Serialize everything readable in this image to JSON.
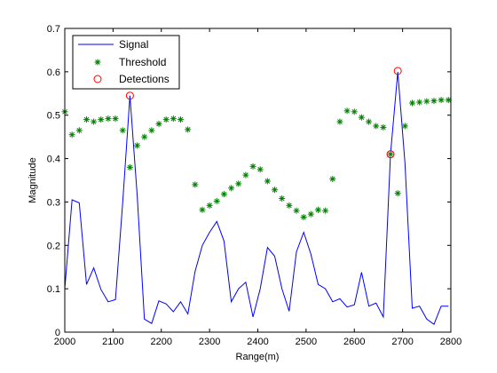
{
  "chart_data": {
    "type": "line",
    "title": "",
    "xlabel": "Range(m)",
    "ylabel": "Magnitude",
    "xlim": [
      2000,
      2800
    ],
    "ylim": [
      0,
      0.7
    ],
    "xticks": [
      2000,
      2100,
      2200,
      2300,
      2400,
      2500,
      2600,
      2700,
      2800
    ],
    "xtick_labels": [
      "2000",
      "2100",
      "2200",
      "2300",
      "2400",
      "2500",
      "2600",
      "2700",
      "2800"
    ],
    "yticks": [
      0,
      0.1,
      0.2,
      0.3,
      0.4,
      0.5,
      0.6,
      0.7
    ],
    "ytick_labels": [
      "0",
      "0.1",
      "0.2",
      "0.3",
      "0.4",
      "0.5",
      "0.6",
      "0.7"
    ],
    "legend_position": "top-left",
    "colors": {
      "signal": "#0000ff",
      "threshold": "#008000",
      "detections": "#ff0000"
    },
    "series": [
      {
        "name": "Signal",
        "style": "line",
        "x": [
          2000,
          2015,
          2030,
          2045,
          2060,
          2075,
          2090,
          2105,
          2120,
          2135,
          2150,
          2165,
          2180,
          2195,
          2210,
          2225,
          2240,
          2255,
          2270,
          2285,
          2300,
          2315,
          2330,
          2345,
          2360,
          2375,
          2390,
          2405,
          2420,
          2435,
          2450,
          2465,
          2480,
          2495,
          2510,
          2525,
          2540,
          2555,
          2570,
          2585,
          2600,
          2615,
          2630,
          2645,
          2660,
          2675,
          2690,
          2705,
          2720,
          2735,
          2750,
          2765,
          2780,
          2795
        ],
        "values": [
          0.1,
          0.305,
          0.298,
          0.11,
          0.148,
          0.098,
          0.07,
          0.075,
          0.3,
          0.545,
          0.315,
          0.03,
          0.02,
          0.072,
          0.065,
          0.047,
          0.07,
          0.042,
          0.14,
          0.2,
          0.23,
          0.255,
          0.21,
          0.07,
          0.1,
          0.115,
          0.035,
          0.1,
          0.195,
          0.175,
          0.1,
          0.048,
          0.185,
          0.23,
          0.18,
          0.11,
          0.1,
          0.07,
          0.077,
          0.058,
          0.063,
          0.138,
          0.06,
          0.067,
          0.035,
          0.41,
          0.6,
          0.39,
          0.055,
          0.06,
          0.03,
          0.018,
          0.06,
          0.06
        ]
      },
      {
        "name": "Threshold",
        "style": "markers",
        "x": [
          2000,
          2015,
          2030,
          2045,
          2060,
          2075,
          2090,
          2105,
          2120,
          2135,
          2150,
          2165,
          2180,
          2195,
          2210,
          2225,
          2240,
          2255,
          2270,
          2285,
          2300,
          2315,
          2330,
          2345,
          2360,
          2375,
          2390,
          2405,
          2420,
          2435,
          2450,
          2465,
          2480,
          2495,
          2510,
          2525,
          2540,
          2555,
          2570,
          2585,
          2600,
          2615,
          2630,
          2645,
          2660,
          2675,
          2690,
          2705,
          2720,
          2735,
          2750,
          2765,
          2780,
          2795
        ],
        "values": [
          0.508,
          0.455,
          0.465,
          0.49,
          0.485,
          0.49,
          0.492,
          0.492,
          0.465,
          0.38,
          0.43,
          0.45,
          0.465,
          0.48,
          0.49,
          0.492,
          0.49,
          0.467,
          0.34,
          0.282,
          0.292,
          0.302,
          0.318,
          0.332,
          0.342,
          0.362,
          0.382,
          0.375,
          0.348,
          0.328,
          0.308,
          0.292,
          0.28,
          0.265,
          0.272,
          0.282,
          0.28,
          0.353,
          0.485,
          0.51,
          0.508,
          0.495,
          0.485,
          0.475,
          0.472,
          0.41,
          0.32,
          0.475,
          0.528,
          0.53,
          0.532,
          0.533,
          0.535,
          0.535
        ]
      },
      {
        "name": "Detections",
        "style": "circles",
        "x": [
          2135,
          2675,
          2690
        ],
        "values": [
          0.545,
          0.41,
          0.602
        ]
      }
    ]
  }
}
